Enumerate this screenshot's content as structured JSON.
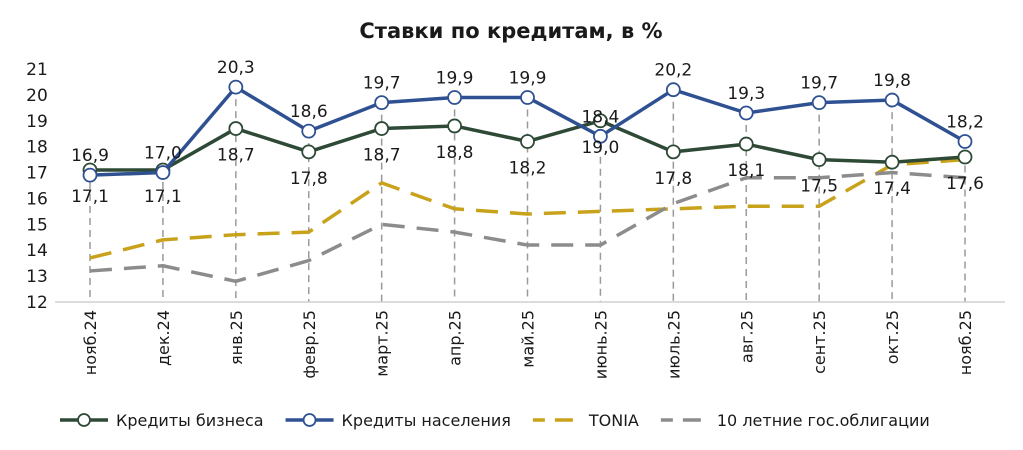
{
  "chart_data": {
    "type": "line",
    "title": "Ставки по кредитам, в %",
    "xlabel": "",
    "ylabel": "",
    "ylim": [
      12,
      21
    ],
    "yticks": [
      12,
      13,
      14,
      15,
      16,
      17,
      18,
      19,
      20,
      21
    ],
    "grid": false,
    "legend_position": "bottom",
    "categories": [
      "нояб.24",
      "дек.24",
      "янв.25",
      "февр.25",
      "март.25",
      "апр.25",
      "май.25",
      "июнь.25",
      "июль.25",
      "авг.25",
      "сент.25",
      "окт.25",
      "нояб.25"
    ],
    "series": [
      {
        "name": "Кредиты бизнеса",
        "color": "#2e4a36",
        "style": "solid-markers",
        "label_position": "below",
        "values": [
          17.1,
          17.1,
          18.7,
          17.8,
          18.7,
          18.8,
          18.2,
          19.0,
          17.8,
          18.1,
          17.5,
          17.4,
          17.6
        ],
        "labels": [
          "17,1",
          "17,1",
          "18,7",
          "17,8",
          "18,7",
          "18,8",
          "18,2",
          "19,0",
          "17,8",
          "18,1",
          "17,5",
          "17,4",
          "17,6"
        ]
      },
      {
        "name": "Кредиты населения",
        "color": "#2f5192",
        "style": "solid-markers",
        "label_position": "above",
        "values": [
          16.9,
          17.0,
          20.3,
          18.6,
          19.7,
          19.9,
          19.9,
          18.4,
          20.2,
          19.3,
          19.7,
          19.8,
          18.2
        ],
        "labels": [
          "16,9",
          "17,0",
          "20,3",
          "18,6",
          "19,7",
          "19,9",
          "19,9",
          "18,4",
          "20,2",
          "19,3",
          "19,7",
          "19,8",
          "18,2"
        ]
      },
      {
        "name": "TONIA",
        "color": "#c9a21b",
        "style": "dashed",
        "values": [
          13.7,
          14.4,
          14.6,
          14.7,
          16.6,
          15.6,
          15.4,
          15.5,
          15.6,
          15.7,
          15.7,
          17.3,
          17.5
        ]
      },
      {
        "name": "10 летние гос.облигации",
        "color": "#8c8c8c",
        "style": "dashed",
        "values": [
          13.2,
          13.4,
          12.8,
          13.6,
          15.0,
          14.7,
          14.2,
          14.2,
          15.8,
          16.8,
          16.8,
          17.0,
          16.8
        ]
      }
    ]
  }
}
